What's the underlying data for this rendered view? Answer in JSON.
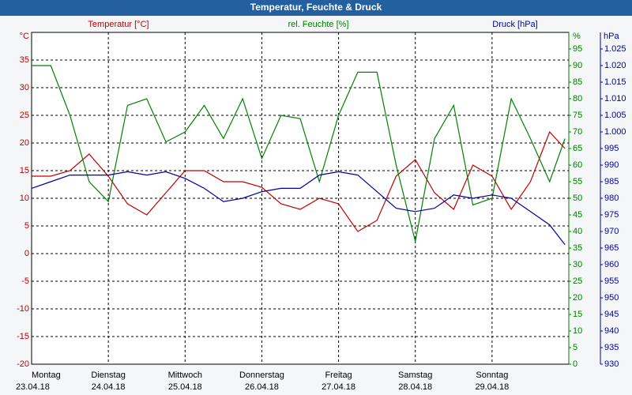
{
  "chart_data": {
    "type": "line",
    "title": "Temperatur, Feuchte & Druck",
    "x": [
      0,
      0.25,
      0.5,
      0.75,
      1,
      1.25,
      1.5,
      1.75,
      2,
      2.25,
      2.5,
      2.75,
      3,
      3.25,
      3.5,
      3.75,
      4,
      4.25,
      4.5,
      4.75,
      5,
      5.25,
      5.5,
      5.75,
      6,
      6.25,
      6.5,
      6.75,
      6.95
    ],
    "xlim": [
      0,
      7
    ],
    "xticks": [
      0,
      1,
      2,
      3,
      4,
      5,
      6
    ],
    "xtick_days": [
      "Montag",
      "Dienstag",
      "Mittwoch",
      "Donnerstag",
      "Freitag",
      "Samstag",
      "Sonntag"
    ],
    "xtick_dates": [
      "23.04.18",
      "24.04.18",
      "25.04.18",
      "26.04.18",
      "27.04.18",
      "28.04.18",
      "29.04.18"
    ],
    "y_unit": "°C",
    "y2_unit": "%",
    "y3_unit": "hPa",
    "ylim": [
      -20,
      40
    ],
    "yticks": [
      -20,
      -15,
      -10,
      -5,
      0,
      5,
      10,
      15,
      20,
      25,
      30,
      35
    ],
    "y2lim": [
      0,
      100
    ],
    "y2ticks": [
      0,
      5,
      10,
      15,
      20,
      25,
      30,
      35,
      40,
      45,
      50,
      55,
      60,
      65,
      70,
      75,
      80,
      85,
      90,
      95
    ],
    "y3lim": [
      930,
      1030
    ],
    "y3ticks": [
      930,
      935,
      940,
      945,
      950,
      955,
      960,
      965,
      970,
      975,
      980,
      985,
      990,
      995,
      {
        "value": 1000,
        "label": "1.000"
      },
      {
        "value": 1005,
        "label": "1.005"
      },
      {
        "value": 1010,
        "label": "1.010"
      },
      {
        "value": 1015,
        "label": "1.015"
      },
      {
        "value": 1020,
        "label": "1.020"
      },
      {
        "value": 1025,
        "label": "1.025"
      }
    ],
    "grid": true,
    "series": [
      {
        "name": "Temperatur [°C]",
        "color": "#c00000",
        "axis": "y",
        "values": [
          14,
          14,
          15,
          18,
          14,
          9,
          7,
          11,
          15,
          15,
          13,
          13,
          12,
          9,
          8,
          10,
          9,
          4,
          6,
          14,
          17,
          11,
          8,
          16,
          14,
          8,
          13,
          22,
          19
        ]
      },
      {
        "name": "rel. Feuchte [%]",
        "color": "#008000",
        "axis": "y2",
        "values": [
          90,
          90,
          75,
          55,
          49,
          78,
          80,
          67,
          70,
          78,
          68,
          80,
          62,
          75,
          74,
          55,
          75,
          88,
          88,
          60,
          37,
          68,
          78,
          48,
          50,
          80,
          68,
          55,
          68
        ]
      },
      {
        "name": "Druck [hPa]",
        "color": "#0000a0",
        "axis": "y3",
        "values": [
          983,
          985,
          987,
          987,
          987,
          988,
          987,
          988,
          986,
          983,
          979,
          980,
          982,
          983,
          983,
          987,
          988,
          987,
          982,
          977,
          976,
          977,
          981,
          980,
          981,
          980,
          976,
          972,
          966
        ]
      }
    ]
  }
}
